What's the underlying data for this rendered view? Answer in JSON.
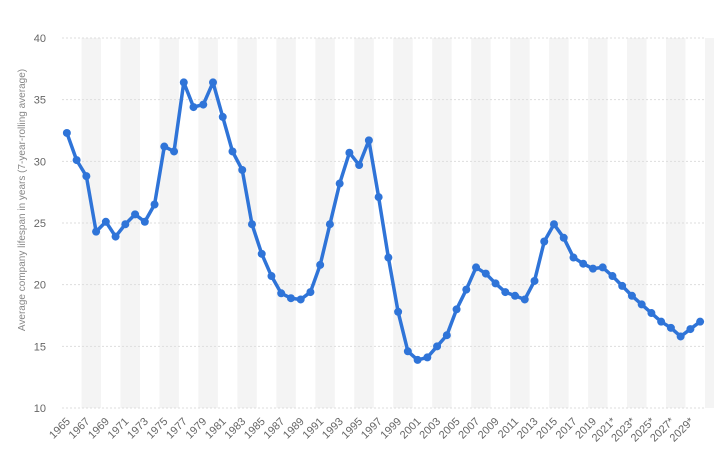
{
  "chart_data": {
    "type": "line",
    "y_label": "Average company lifespan in years (7-year-rolling average)",
    "categories": [
      "1965",
      null,
      "1967",
      null,
      "1969",
      null,
      "1971",
      null,
      "1973",
      null,
      "1975",
      null,
      "1977",
      null,
      "1979",
      null,
      "1981",
      null,
      "1983",
      null,
      "1985",
      null,
      "1987",
      null,
      "1989",
      null,
      "1991",
      null,
      "1993",
      null,
      "1995",
      null,
      "1997",
      null,
      "1999",
      null,
      "2001",
      null,
      "2003",
      null,
      "2005",
      null,
      "2007",
      null,
      "2009",
      null,
      "2011",
      null,
      "2013",
      null,
      "2015",
      null,
      "2017",
      null,
      "2019",
      null,
      "2021*",
      null,
      "2023*",
      null,
      "2025*",
      null,
      "2027*",
      null,
      "2029*",
      null
    ],
    "series": [
      {
        "color": "#2f74d8",
        "values": [
          32.3,
          30.1,
          28.8,
          24.3,
          25.1,
          23.9,
          24.9,
          25.7,
          25.1,
          26.5,
          31.2,
          30.8,
          36.4,
          34.4,
          34.6,
          36.4,
          33.6,
          30.8,
          29.3,
          24.9,
          22.5,
          20.7,
          19.3,
          18.9,
          18.8,
          19.4,
          21.6,
          24.9,
          28.2,
          30.7,
          29.7,
          31.7,
          27.1,
          22.2,
          17.8,
          14.6,
          13.9,
          14.1,
          15.0,
          15.9,
          18.0,
          19.6,
          21.4,
          20.9,
          20.1,
          19.4,
          19.1,
          18.8,
          20.3,
          23.5,
          24.9,
          23.8,
          22.2,
          21.7,
          21.3,
          21.4,
          20.7,
          19.9,
          19.1,
          18.4,
          17.7,
          17.0,
          16.5,
          15.8,
          16.4,
          17.0
        ]
      }
    ],
    "ylim": [
      10,
      40
    ],
    "yticks": [
      10,
      15,
      20,
      25,
      30,
      35,
      40
    ],
    "grid": true
  }
}
